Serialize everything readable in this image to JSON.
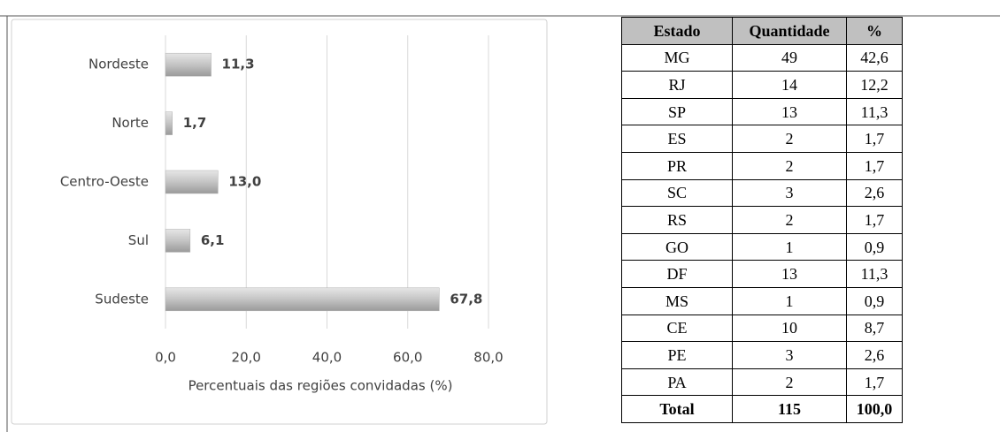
{
  "chart_data": {
    "type": "bar",
    "orientation": "horizontal",
    "categories": [
      "Nordeste",
      "Norte",
      "Centro-Oeste",
      "Sul",
      "Sudeste"
    ],
    "values": [
      11.3,
      1.7,
      13.0,
      6.1,
      67.8
    ],
    "value_labels": [
      "11,3",
      "1,7",
      "13,0",
      "6,1",
      "67,8"
    ],
    "color": "#b0b0b0",
    "xlim": [
      0,
      80
    ],
    "xticks": [
      {
        "value": 0,
        "label": "0,0"
      },
      {
        "value": 20,
        "label": "20,0"
      },
      {
        "value": 40,
        "label": "40,0"
      },
      {
        "value": 60,
        "label": "60,0"
      },
      {
        "value": 80,
        "label": "80,0"
      }
    ],
    "xlabel": "Percentuais das regiões convidadas (%)",
    "grid": true
  },
  "table": {
    "header": [
      "Estado",
      "Quantidade",
      "%"
    ],
    "rows": [
      [
        "MG",
        "49",
        "42,6"
      ],
      [
        "RJ",
        "14",
        "12,2"
      ],
      [
        "SP",
        "13",
        "11,3"
      ],
      [
        "ES",
        "2",
        "1,7"
      ],
      [
        "PR",
        "2",
        "1,7"
      ],
      [
        "SC",
        "3",
        "2,6"
      ],
      [
        "RS",
        "2",
        "1,7"
      ],
      [
        "GO",
        "1",
        "0,9"
      ],
      [
        "DF",
        "13",
        "11,3"
      ],
      [
        "MS",
        "1",
        "0,9"
      ],
      [
        "CE",
        "10",
        "8,7"
      ],
      [
        "PE",
        "3",
        "2,6"
      ],
      [
        "PA",
        "2",
        "1,7"
      ]
    ],
    "total": [
      "Total",
      "115",
      "100,0"
    ]
  }
}
